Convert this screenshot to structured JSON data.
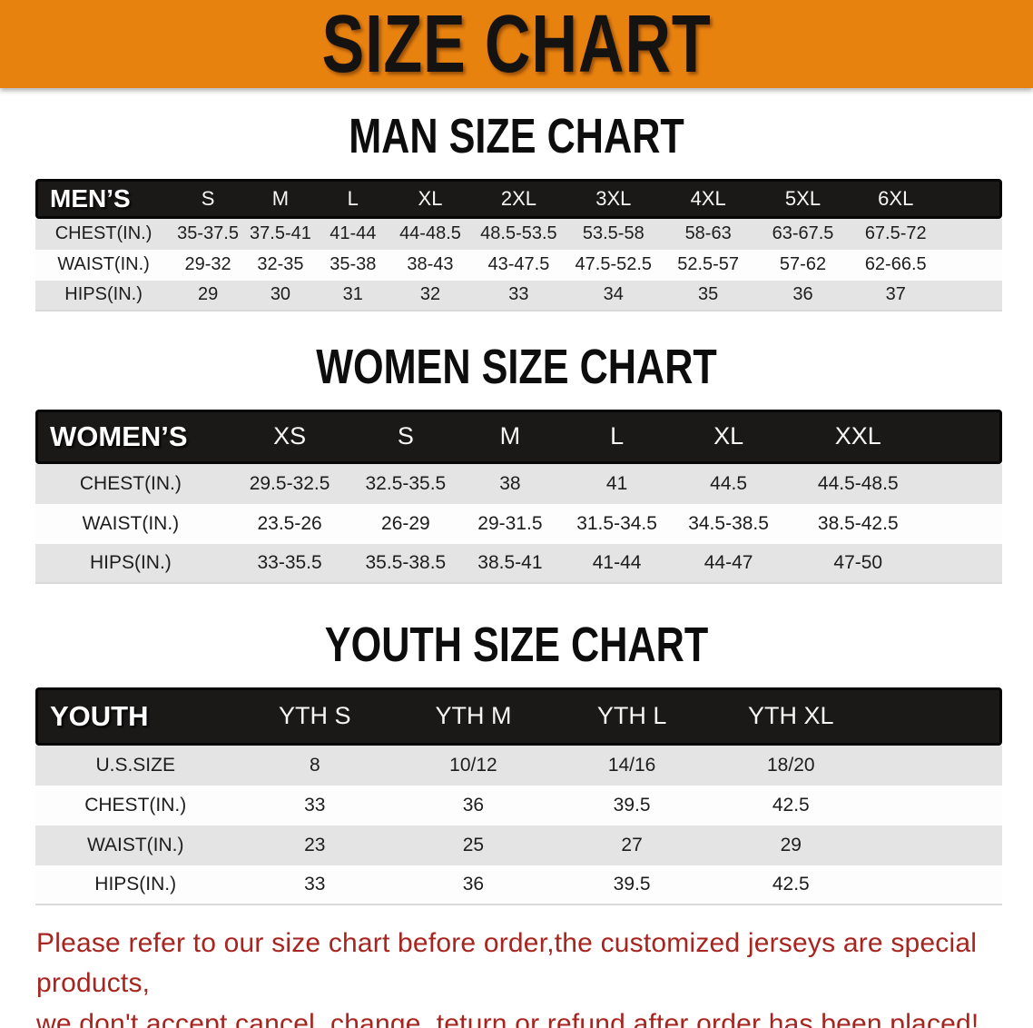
{
  "banner": {
    "title": "SIZE CHART",
    "bg_color": "#E8820F",
    "text_color": "#151311"
  },
  "sections": {
    "men": {
      "heading": "MAN SIZE CHART"
    },
    "women": {
      "heading": "WOMEN SIZE CHART"
    },
    "youth": {
      "heading": "YOUTH SIZE CHART"
    }
  },
  "tables": {
    "men": {
      "label": "MEN’S",
      "columns": [
        "S",
        "M",
        "L",
        "XL",
        "2XL",
        "3XL",
        "4XL",
        "5XL",
        "6XL"
      ],
      "rows": [
        {
          "label": "CHEST(IN.)",
          "values": [
            "35-37.5",
            "37.5-41",
            "41-44",
            "44-48.5",
            "48.5-53.5",
            "53.5-58",
            "58-63",
            "63-67.5",
            "67.5-72"
          ]
        },
        {
          "label": "WAIST(IN.)",
          "values": [
            "29-32",
            "32-35",
            "35-38",
            "38-43",
            "43-47.5",
            "47.5-52.5",
            "52.5-57",
            "57-62",
            "62-66.5"
          ]
        },
        {
          "label": "HIPS(IN.)",
          "values": [
            "29",
            "30",
            "31",
            "32",
            "33",
            "34",
            "35",
            "36",
            "37"
          ]
        }
      ]
    },
    "women": {
      "label": "WOMEN’S",
      "columns": [
        "XS",
        "S",
        "M",
        "L",
        "XL",
        "XXL"
      ],
      "rows": [
        {
          "label": "CHEST(IN.)",
          "values": [
            "29.5-32.5",
            "32.5-35.5",
            "38",
            "41",
            "44.5",
            "44.5-48.5"
          ]
        },
        {
          "label": "WAIST(IN.)",
          "values": [
            "23.5-26",
            "26-29",
            "29-31.5",
            "31.5-34.5",
            "34.5-38.5",
            "38.5-42.5"
          ]
        },
        {
          "label": "HIPS(IN.)",
          "values": [
            "33-35.5",
            "35.5-38.5",
            "38.5-41",
            "41-44",
            "44-47",
            "47-50"
          ]
        }
      ]
    },
    "youth": {
      "label": "YOUTH",
      "columns": [
        "YTH S",
        "YTH M",
        "YTH L",
        "YTH XL"
      ],
      "rows": [
        {
          "label": "U.S.SIZE",
          "values": [
            "8",
            "10/12",
            "14/16",
            "18/20"
          ]
        },
        {
          "label": "CHEST(IN.)",
          "values": [
            "33",
            "36",
            "39.5",
            "42.5"
          ]
        },
        {
          "label": "WAIST(IN.)",
          "values": [
            "23",
            "25",
            "27",
            "29"
          ]
        },
        {
          "label": "HIPS(IN.)",
          "values": [
            "33",
            "36",
            "39.5",
            "42.5"
          ]
        }
      ]
    }
  },
  "disclaimer": {
    "color": "#A7241F",
    "lines": [
      "Please refer to our size chart before order,the customized jerseys are special products,",
      "we don't accept cancel, change, teturn or refund after order has been placed!"
    ]
  }
}
